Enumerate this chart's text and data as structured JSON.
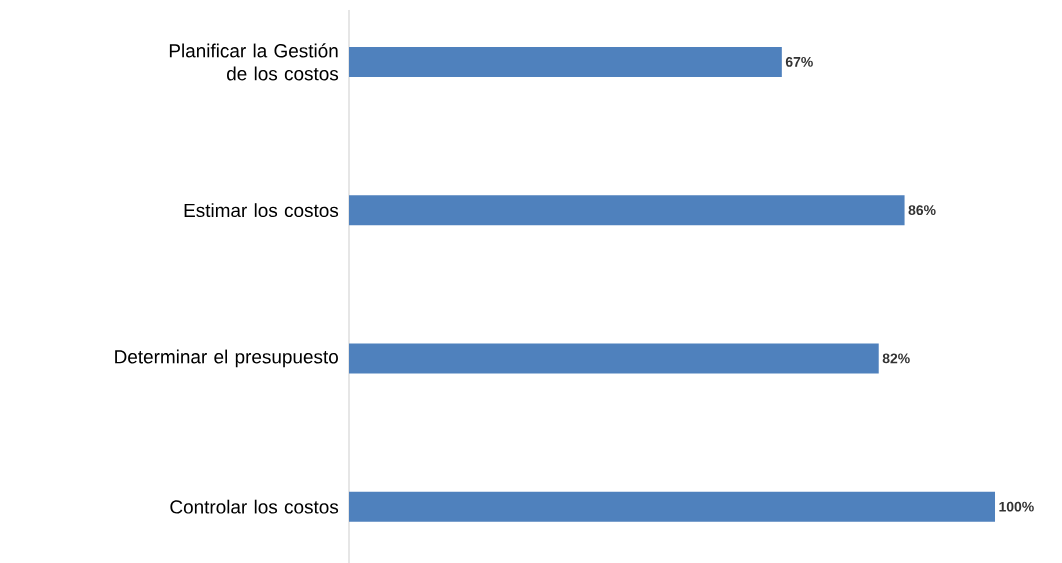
{
  "chart_data": {
    "type": "bar",
    "orientation": "horizontal",
    "categories": [
      "Planificar la Gestión de los costos",
      "Estimar los costos",
      "Determinar el presupuesto",
      "Controlar los costos"
    ],
    "values": [
      67,
      86,
      82,
      100
    ],
    "value_labels": [
      "67%",
      "86%",
      "82%",
      "100%"
    ],
    "color": "#4f81bd"
  }
}
